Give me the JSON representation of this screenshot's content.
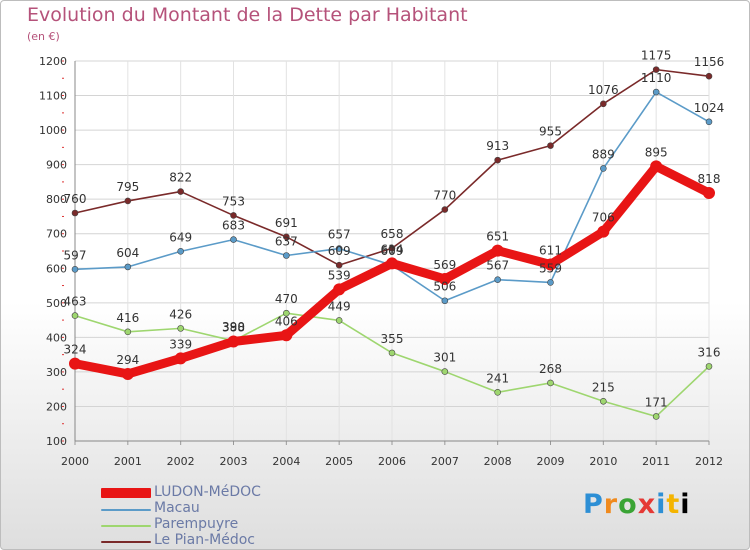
{
  "header": {
    "title": "Evolution du Montant de la Dette par Habitant",
    "unit": "(en €)"
  },
  "logo": {
    "letters": [
      "P",
      "r",
      "o",
      "x",
      "i",
      "t",
      "i"
    ]
  },
  "chart_data": {
    "type": "line",
    "title": "Evolution du Montant de la Dette par Habitant",
    "subtitle": "(en €)",
    "xlabel": "",
    "ylabel": "",
    "categories": [
      "2000",
      "2001",
      "2002",
      "2003",
      "2004",
      "2005",
      "2006",
      "2007",
      "2008",
      "2009",
      "2010",
      "2011",
      "2012"
    ],
    "ylim": [
      100,
      1200
    ],
    "yticks": [
      "100",
      "200",
      "300",
      "400",
      "500",
      "600",
      "700",
      "800",
      "900",
      "1000",
      "1100",
      "1200"
    ],
    "grid": true,
    "legend_position": "bottom-left",
    "series": [
      {
        "name": "LUDON-MéDOC",
        "color": "#e81515",
        "values": [
          324,
          294,
          339,
          388,
          406,
          539,
          614,
          569,
          651,
          611,
          706,
          895,
          818
        ],
        "labels": [
          "324",
          "294",
          "339",
          "388",
          "406",
          "539",
          "614",
          "569",
          "651",
          "611",
          "706",
          "895",
          "818"
        ]
      },
      {
        "name": "Macau",
        "color": "#5b9bc8",
        "values": [
          597,
          604,
          649,
          683,
          637,
          657,
          609,
          506,
          567,
          559,
          889,
          1110,
          1024
        ],
        "labels": [
          "597",
          "604",
          "649",
          "683",
          "637",
          "657",
          "609",
          "506",
          "567",
          "559",
          "889",
          "1110",
          "1024"
        ]
      },
      {
        "name": "Parempuyre",
        "color": "#9ed66f",
        "values": [
          463,
          416,
          426,
          390,
          470,
          449,
          355,
          301,
          241,
          268,
          215,
          171,
          316
        ],
        "labels": [
          "463",
          "416",
          "426",
          "390",
          "470",
          "449",
          "355",
          "301",
          "241",
          "268",
          "215",
          "171",
          "316"
        ]
      },
      {
        "name": "Le Pian-Médoc",
        "color": "#7a2a2a",
        "values": [
          760,
          795,
          822,
          753,
          691,
          609,
          658,
          770,
          913,
          955,
          1076,
          1175,
          1156
        ],
        "labels": [
          "760",
          "795",
          "822",
          "753",
          "691",
          "609",
          "658",
          "770",
          "913",
          "955",
          "1076",
          "1175",
          "1156"
        ]
      }
    ]
  }
}
